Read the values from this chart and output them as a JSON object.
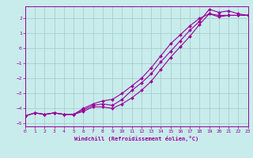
{
  "xlabel": "Windchill (Refroidissement éolien,°C)",
  "background_color": "#c8ecec",
  "grid_color": "#a0c8c8",
  "line_color": "#990099",
  "xlim": [
    0,
    23
  ],
  "ylim": [
    -5.2,
    2.8
  ],
  "yticks": [
    -5,
    -4,
    -3,
    -2,
    -1,
    0,
    1,
    2
  ],
  "xticks": [
    0,
    1,
    2,
    3,
    4,
    5,
    6,
    7,
    8,
    9,
    10,
    11,
    12,
    13,
    14,
    15,
    16,
    17,
    18,
    19,
    20,
    21,
    22,
    23
  ],
  "series": [
    {
      "x": [
        0,
        1,
        2,
        3,
        4,
        5,
        6,
        7,
        8,
        9,
        10,
        11,
        12,
        13,
        14,
        15,
        16,
        17,
        18,
        19,
        20,
        21,
        22,
        23
      ],
      "y": [
        -4.5,
        -4.3,
        -4.4,
        -4.3,
        -4.4,
        -4.4,
        -4.0,
        -3.7,
        -3.5,
        -3.4,
        -3.0,
        -2.5,
        -2.0,
        -1.3,
        -0.5,
        0.3,
        0.9,
        1.5,
        2.0,
        2.3,
        2.2,
        2.2,
        2.2,
        2.2
      ]
    },
    {
      "x": [
        0,
        1,
        2,
        3,
        4,
        5,
        6,
        7,
        8,
        9,
        10,
        11,
        12,
        13,
        14,
        15,
        16,
        17,
        18,
        19,
        20,
        21,
        22,
        23
      ],
      "y": [
        -4.5,
        -4.3,
        -4.4,
        -4.3,
        -4.4,
        -4.4,
        -4.2,
        -3.9,
        -3.9,
        -4.0,
        -3.7,
        -3.3,
        -2.8,
        -2.2,
        -1.4,
        -0.6,
        0.1,
        0.8,
        1.6,
        2.3,
        2.1,
        2.2,
        2.2,
        2.2
      ]
    },
    {
      "x": [
        0,
        1,
        2,
        3,
        4,
        5,
        6,
        7,
        8,
        9,
        10,
        11,
        12,
        13,
        14,
        15,
        16,
        17,
        18,
        19,
        20,
        21,
        22,
        23
      ],
      "y": [
        -4.5,
        -4.3,
        -4.4,
        -4.3,
        -4.4,
        -4.4,
        -4.1,
        -3.8,
        -3.7,
        -3.8,
        -3.4,
        -2.8,
        -2.3,
        -1.7,
        -0.9,
        -0.2,
        0.5,
        1.2,
        1.8,
        2.6,
        2.4,
        2.5,
        2.3,
        2.2
      ]
    }
  ]
}
